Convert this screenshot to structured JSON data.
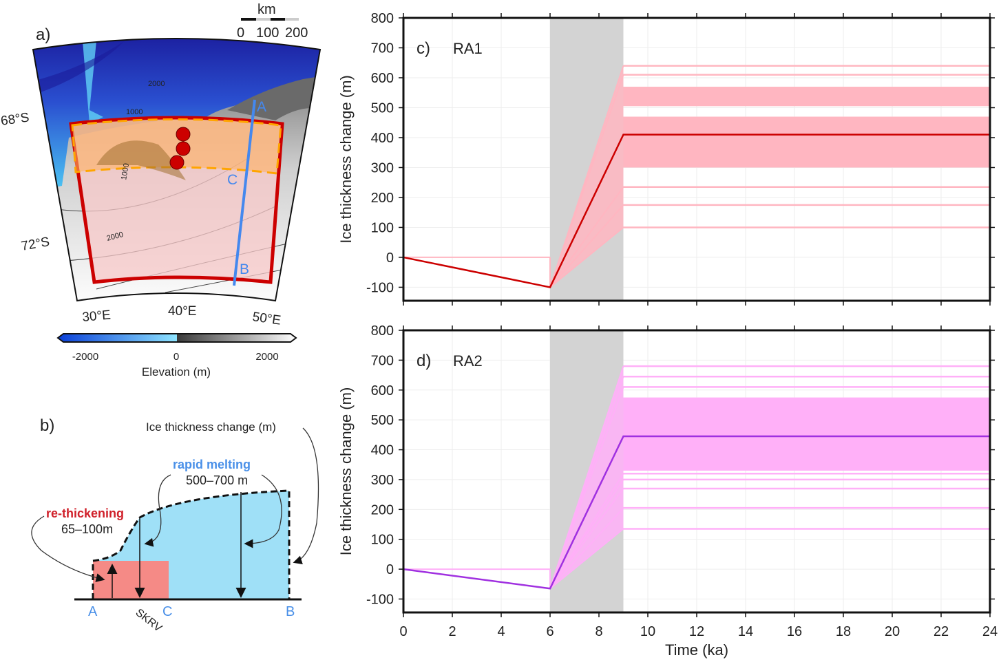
{
  "panel_a": {
    "label": "a)",
    "scale_unit": "km",
    "scale_ticks": [
      "0",
      "100",
      "200"
    ],
    "lat_labels": [
      "68°S",
      "72°S"
    ],
    "lon_labels": [
      "30°E",
      "40°E",
      "50°E"
    ],
    "contour_labels": [
      "1000",
      "2000",
      "1000",
      "2000"
    ],
    "transect_points": [
      "A",
      "B",
      "C"
    ],
    "colorbar": {
      "ticks": [
        "-2000",
        "0",
        "2000"
      ],
      "label": "Elevation (m)"
    },
    "colors": {
      "region_outline": "#cc0000",
      "sub_region_outline": "#ffa500",
      "transect": "#4488ee",
      "sites": "#cc0000"
    }
  },
  "panel_b": {
    "label": "b)",
    "axis_note": "Ice thickness change (m)",
    "rapid_melting": {
      "title": "rapid melting",
      "range": "500–700 m"
    },
    "re_thickening": {
      "title": "re-thickening",
      "range": "65–100m"
    },
    "points": [
      "A",
      "C",
      "B"
    ],
    "site_label": "SKRV",
    "colors": {
      "ice": "#9fe0f7",
      "rethick": "#f58a86",
      "melt_text": "#4a90e8",
      "rethick_text": "#d0202a"
    }
  },
  "chart_data": [
    {
      "type": "line",
      "panel_label": "c)",
      "title": "RA1",
      "xlabel": "",
      "ylabel": "Ice thickness change (m)",
      "xlim": [
        0,
        24
      ],
      "ylim": [
        -145,
        800
      ],
      "xticks": [
        0,
        2,
        4,
        6,
        8,
        10,
        12,
        14,
        16,
        18,
        20,
        22,
        24
      ],
      "yticks": [
        -100,
        0,
        100,
        200,
        300,
        400,
        500,
        600,
        700,
        800
      ],
      "shaded_interval": [
        6,
        9
      ],
      "grid": true,
      "colors": {
        "mean": "#cc0000",
        "ensemble": "#ffb6c1",
        "shade": "#d3d3d3"
      },
      "mean_series": {
        "x": [
          0,
          6,
          9,
          24
        ],
        "y": [
          0,
          -100,
          410,
          410
        ]
      },
      "ensemble_bands": [
        [
          300,
          470
        ],
        [
          505,
          570
        ]
      ],
      "ensemble_lines": [
        640,
        610,
        235,
        175,
        100
      ]
    },
    {
      "type": "line",
      "panel_label": "d)",
      "title": "RA2",
      "xlabel": "Time (ka)",
      "ylabel": "Ice thickness change (m)",
      "xlim": [
        0,
        24
      ],
      "ylim": [
        -145,
        800
      ],
      "xticks": [
        0,
        2,
        4,
        6,
        8,
        10,
        12,
        14,
        16,
        18,
        20,
        22,
        24
      ],
      "yticks": [
        -100,
        0,
        100,
        200,
        300,
        400,
        500,
        600,
        700,
        800
      ],
      "shaded_interval": [
        6,
        9
      ],
      "grid": true,
      "colors": {
        "mean": "#a030e0",
        "ensemble": "#ffb0f8",
        "shade": "#d3d3d3"
      },
      "mean_series": {
        "x": [
          0,
          6,
          9,
          24
        ],
        "y": [
          0,
          -65,
          445,
          445
        ]
      },
      "ensemble_bands": [
        [
          330,
          575
        ]
      ],
      "ensemble_lines": [
        680,
        645,
        610,
        320,
        300,
        270,
        205,
        135
      ]
    }
  ]
}
